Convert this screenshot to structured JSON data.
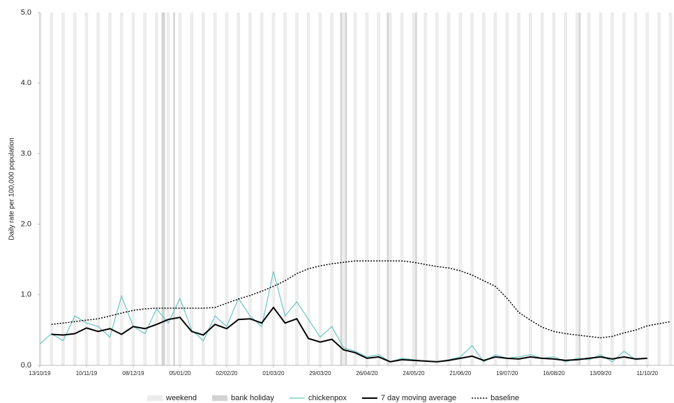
{
  "chart_data": {
    "type": "line",
    "y_label": "Daily rate per 100,000 population",
    "x": [
      "13/10/19",
      "20/10/19",
      "27/10/19",
      "03/11/19",
      "10/11/19",
      "17/11/19",
      "24/11/19",
      "01/12/19",
      "08/12/19",
      "15/12/19",
      "22/12/19",
      "29/12/19",
      "05/01/20",
      "12/01/20",
      "19/01/20",
      "26/01/20",
      "02/02/20",
      "09/02/20",
      "16/02/20",
      "23/02/20",
      "01/03/20",
      "08/03/20",
      "15/03/20",
      "22/03/20",
      "29/03/20",
      "05/04/20",
      "12/04/20",
      "19/04/20",
      "26/04/20",
      "03/05/20",
      "10/05/20",
      "17/05/20",
      "24/05/20",
      "31/05/20",
      "07/06/20",
      "14/06/20",
      "21/06/20",
      "28/06/20",
      "05/07/20",
      "12/07/20",
      "19/07/20",
      "26/07/20",
      "02/08/20",
      "09/08/20",
      "16/08/20",
      "23/08/20",
      "30/08/20",
      "06/09/20",
      "13/09/20",
      "20/09/20",
      "27/09/20",
      "04/10/20",
      "11/10/20",
      "18/10/20",
      "25/10/20"
    ],
    "series": [
      {
        "name": "chickenpox",
        "color": "#6cc5bd",
        "width": 1.2,
        "dash": "none",
        "values": [
          0.3,
          0.45,
          0.35,
          0.7,
          0.6,
          0.55,
          0.4,
          0.98,
          0.55,
          0.45,
          0.8,
          0.6,
          0.95,
          0.5,
          0.35,
          0.7,
          0.55,
          0.95,
          0.7,
          0.55,
          1.33,
          0.7,
          0.9,
          0.65,
          0.4,
          0.55,
          0.25,
          0.2,
          0.12,
          0.15,
          0.05,
          0.1,
          0.08,
          0.06,
          0.05,
          0.08,
          0.12,
          0.28,
          0.05,
          0.15,
          0.1,
          0.12,
          0.15,
          0.1,
          0.12,
          0.05,
          0.1,
          0.08,
          0.15,
          0.05,
          0.2,
          0.08,
          0.1,
          null,
          null
        ]
      },
      {
        "name": "7 day moving average",
        "color": "#000000",
        "width": 2,
        "dash": "none",
        "values": [
          null,
          0.44,
          0.43,
          0.45,
          0.53,
          0.48,
          0.52,
          0.44,
          0.55,
          0.52,
          0.58,
          0.65,
          0.68,
          0.48,
          0.43,
          0.58,
          0.52,
          0.65,
          0.66,
          0.6,
          0.82,
          0.6,
          0.66,
          0.38,
          0.33,
          0.37,
          0.22,
          0.18,
          0.1,
          0.12,
          0.05,
          0.08,
          0.07,
          0.06,
          0.05,
          0.07,
          0.1,
          0.13,
          0.07,
          0.12,
          0.1,
          0.09,
          0.12,
          0.1,
          0.09,
          0.07,
          0.08,
          0.1,
          0.12,
          0.09,
          0.12,
          0.09,
          0.1,
          null,
          null
        ]
      },
      {
        "name": "baseline",
        "color": "#000000",
        "width": 1.5,
        "dash": "2 2",
        "values": [
          null,
          0.58,
          0.6,
          0.62,
          0.64,
          0.66,
          0.7,
          0.74,
          0.78,
          0.8,
          0.81,
          0.81,
          0.81,
          0.81,
          0.81,
          0.82,
          0.88,
          0.94,
          0.99,
          1.05,
          1.12,
          1.2,
          1.3,
          1.37,
          1.41,
          1.44,
          1.46,
          1.48,
          1.48,
          1.48,
          1.48,
          1.48,
          1.46,
          1.43,
          1.4,
          1.38,
          1.34,
          1.28,
          1.2,
          1.12,
          0.95,
          0.75,
          0.64,
          0.54,
          0.48,
          0.45,
          0.43,
          0.41,
          0.39,
          0.41,
          0.46,
          0.5,
          0.56,
          0.59,
          0.62
        ]
      }
    ],
    "shading": [
      {
        "name": "weekend",
        "color": "#ececec"
      },
      {
        "name": "bank holiday",
        "color": "#d2d2d2",
        "dates": [
          "25/12/19",
          "26/12/19",
          "01/01/20",
          "10/04/20",
          "13/04/20",
          "08/05/20",
          "25/05/20",
          "31/08/20"
        ]
      }
    ],
    "xlim": [
      "13/10/19",
      "27/10/20"
    ],
    "xticks": [
      "13/10/19",
      "10/11/19",
      "08/12/19",
      "05/01/20",
      "02/02/20",
      "01/03/20",
      "29/03/20",
      "26/04/20",
      "24/05/20",
      "21/06/20",
      "19/07/20",
      "16/08/20",
      "13/09/20",
      "11/10/20"
    ],
    "ylim": [
      0,
      5
    ],
    "yticks": [
      {
        "value": 0,
        "label": "0.0"
      },
      {
        "value": 1,
        "label": "1.0"
      },
      {
        "value": 2,
        "label": "2.0"
      },
      {
        "value": 3,
        "label": "3.0"
      },
      {
        "value": 4,
        "label": "4.0"
      },
      {
        "value": 5,
        "label": "5.0"
      }
    ],
    "legend": "bottom"
  }
}
